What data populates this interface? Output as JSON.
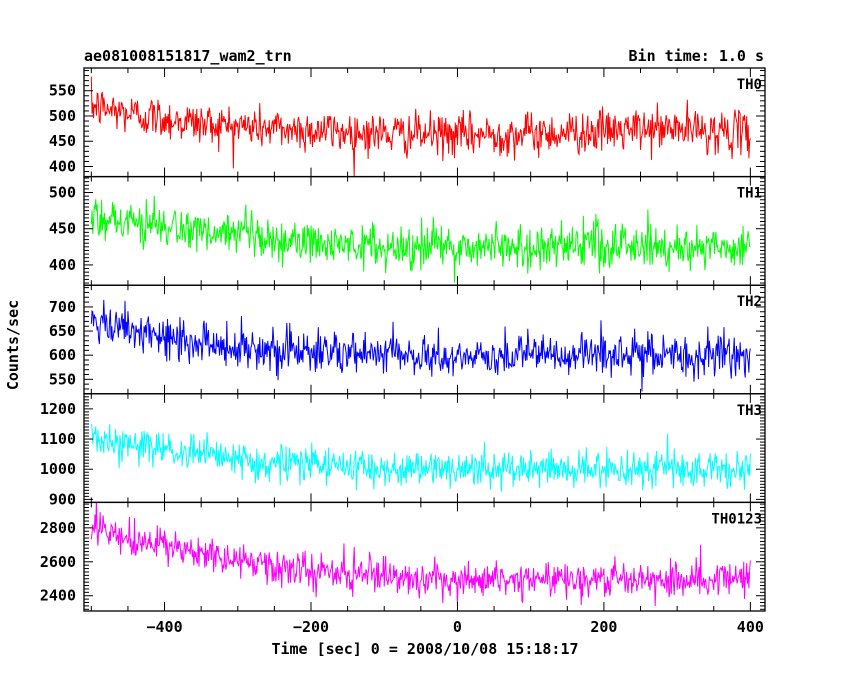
{
  "header": {
    "title": "ae081008151817_wam2_trn",
    "bin_time": "Bin time: 1.0 s"
  },
  "chart_data": {
    "type": "line",
    "xlabel": "Time [sec] 0 = 2008/10/08 15:18:17",
    "ylabel": "Counts/sec",
    "xlim": [
      -510,
      420
    ],
    "x_range": [
      -500,
      400
    ],
    "x_ticks": [
      -400,
      -200,
      0,
      200,
      400
    ],
    "grid": false,
    "series": [
      {
        "name": "TH0",
        "color": "#ff0000",
        "ylim": [
          380,
          595
        ],
        "y_ticks": [
          400,
          450,
          500,
          550
        ],
        "trend": [
          [
            -500,
            520
          ],
          [
            -450,
            505
          ],
          [
            -350,
            485
          ],
          [
            -250,
            475
          ],
          [
            -100,
            465
          ],
          [
            0,
            462
          ],
          [
            100,
            465
          ],
          [
            200,
            470
          ],
          [
            300,
            475
          ],
          [
            400,
            465
          ]
        ],
        "noise_amplitude": 38
      },
      {
        "name": "TH1",
        "color": "#00ff00",
        "ylim": [
          372,
          522
        ],
        "y_ticks": [
          400,
          450,
          500
        ],
        "trend": [
          [
            -500,
            470
          ],
          [
            -450,
            460
          ],
          [
            -350,
            445
          ],
          [
            -250,
            432
          ],
          [
            -100,
            425
          ],
          [
            0,
            425
          ],
          [
            100,
            425
          ],
          [
            200,
            428
          ],
          [
            300,
            425
          ],
          [
            400,
            425
          ]
        ],
        "noise_amplitude": 28
      },
      {
        "name": "TH2",
        "color": "#0000ff",
        "ylim": [
          520,
          745
        ],
        "y_ticks": [
          550,
          600,
          650,
          700
        ],
        "trend": [
          [
            -500,
            665
          ],
          [
            -450,
            648
          ],
          [
            -350,
            625
          ],
          [
            -250,
            612
          ],
          [
            -100,
            600
          ],
          [
            0,
            595
          ],
          [
            100,
            600
          ],
          [
            200,
            600
          ],
          [
            300,
            600
          ],
          [
            400,
            595
          ]
        ],
        "noise_amplitude": 40
      },
      {
        "name": "TH3",
        "color": "#00ffff",
        "ylim": [
          890,
          1250
        ],
        "y_ticks": [
          900,
          1000,
          1100,
          1200
        ],
        "trend": [
          [
            -500,
            1110
          ],
          [
            -450,
            1080
          ],
          [
            -350,
            1045
          ],
          [
            -250,
            1020
          ],
          [
            -100,
            1005
          ],
          [
            0,
            1000
          ],
          [
            100,
            1000
          ],
          [
            200,
            1000
          ],
          [
            300,
            1000
          ],
          [
            400,
            1000
          ]
        ],
        "noise_amplitude": 55
      },
      {
        "name": "TH0123",
        "color": "#ff00ff",
        "ylim": [
          2310,
          2950
        ],
        "y_ticks": [
          2400,
          2600,
          2800
        ],
        "trend": [
          [
            -500,
            2790
          ],
          [
            -450,
            2730
          ],
          [
            -350,
            2650
          ],
          [
            -250,
            2560
          ],
          [
            -100,
            2510
          ],
          [
            0,
            2500
          ],
          [
            100,
            2500
          ],
          [
            200,
            2500
          ],
          [
            300,
            2505
          ],
          [
            400,
            2500
          ]
        ],
        "noise_amplitude": 95
      }
    ]
  }
}
